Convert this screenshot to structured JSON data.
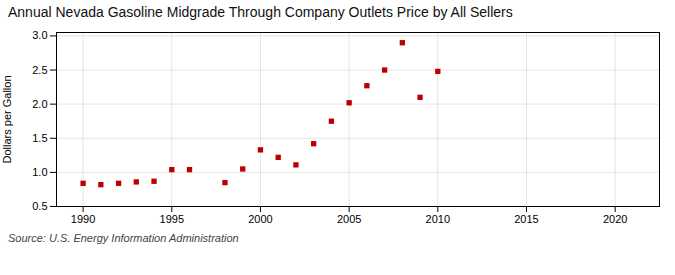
{
  "chart_data": {
    "type": "scatter",
    "title": "Annual Nevada Gasoline Midgrade Through Company Outlets Price by All Sellers",
    "ylabel": "Dollars per Gallon",
    "source": "Source: U.S. Energy Information Administration",
    "x": [
      1990,
      1991,
      1992,
      1993,
      1994,
      1995,
      1996,
      1998,
      1999,
      2000,
      2001,
      2002,
      2003,
      2004,
      2005,
      2006,
      2007,
      2008,
      2009,
      2010
    ],
    "values": [
      0.84,
      0.82,
      0.84,
      0.86,
      0.87,
      1.04,
      1.04,
      0.85,
      1.05,
      1.33,
      1.22,
      1.11,
      1.42,
      1.75,
      2.02,
      2.27,
      2.5,
      2.9,
      2.1,
      2.48
    ],
    "color": "#bb0000",
    "marker": "square",
    "xlim": [
      1988.5,
      2022.5
    ],
    "ylim": [
      0.5,
      3.05
    ],
    "xticks": [
      1990,
      1995,
      2000,
      2005,
      2010,
      2015,
      2020
    ],
    "yticks": [
      0.5,
      {
        "value": 1,
        "label": "1.0"
      },
      1.5,
      {
        "value": 2,
        "label": "2.0"
      },
      2.5,
      {
        "value": 3,
        "label": "3.0"
      }
    ],
    "grid": true
  }
}
